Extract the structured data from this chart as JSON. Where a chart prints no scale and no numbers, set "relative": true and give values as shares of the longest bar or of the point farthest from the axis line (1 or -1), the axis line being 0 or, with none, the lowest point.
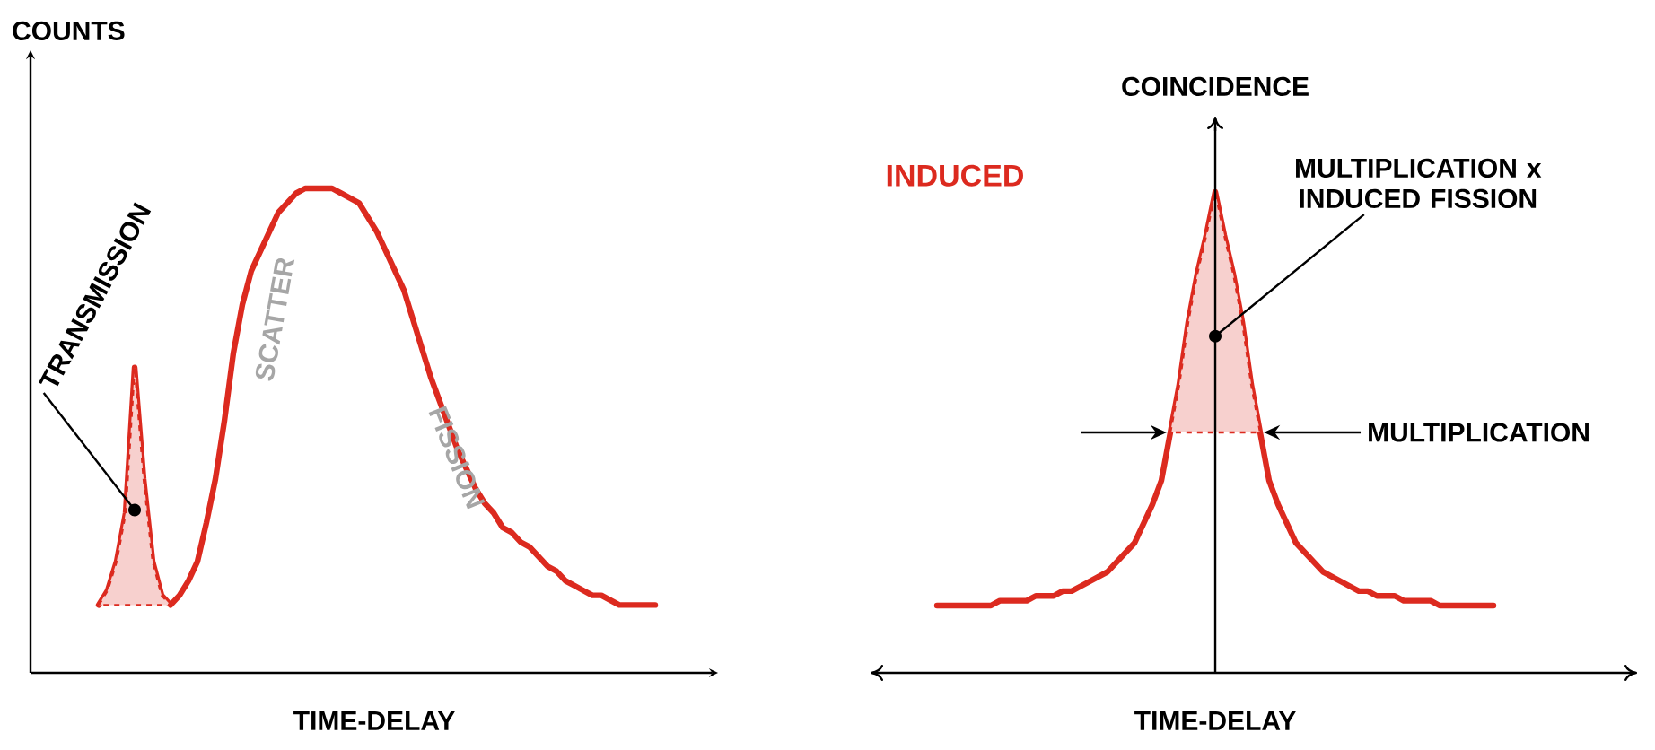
{
  "chart_data": [
    {
      "type": "line",
      "xlabel": "TIME-DELAY",
      "ylabel": "COUNTS",
      "relative": true,
      "categories": [
        null,
        null,
        null,
        null,
        null,
        null,
        null,
        null,
        null,
        null,
        null,
        null,
        null,
        null,
        null,
        null,
        null,
        null,
        null,
        null,
        null,
        null,
        null,
        null,
        null,
        null,
        null,
        null,
        null,
        null,
        null,
        null,
        null,
        null,
        null,
        null,
        null,
        null,
        null,
        null,
        null,
        null,
        null,
        null,
        null,
        null,
        null,
        null,
        null,
        null,
        null,
        null,
        null,
        null,
        null,
        null,
        null,
        null,
        null,
        null,
        null,
        null,
        null
      ],
      "series": [
        {
          "color": "#dc2a1f",
          "values": [
            0.14,
            0.17,
            0.23,
            0.33,
            0.63,
            0.4,
            0.23,
            0.16,
            0.14,
            0.16,
            0.19,
            0.23,
            0.31,
            0.4,
            0.52,
            0.66,
            0.76,
            0.83,
            0.87,
            0.91,
            0.95,
            0.97,
            0.99,
            1.0,
            1.0,
            1.0,
            1.0,
            0.99,
            0.98,
            0.97,
            0.94,
            0.91,
            0.87,
            0.83,
            0.79,
            0.73,
            0.67,
            0.61,
            0.56,
            0.51,
            0.46,
            0.42,
            0.38,
            0.35,
            0.33,
            0.3,
            0.29,
            0.27,
            0.26,
            0.24,
            0.22,
            0.21,
            0.19,
            0.18,
            0.17,
            0.16,
            0.16,
            0.15,
            0.14,
            0.14,
            0.14,
            0.14,
            0.14
          ]
        },
        {
          "type": "area",
          "color": "#dc2a1f",
          "values": [
            0.14,
            0.17,
            0.23,
            0.33,
            0.63,
            0.4,
            0.23,
            0.16,
            0.14,
            null,
            null,
            null,
            null,
            null,
            null,
            null,
            null,
            null,
            null,
            null,
            null,
            null,
            null,
            null,
            null,
            null,
            null,
            null,
            null,
            null,
            null,
            null,
            null,
            null,
            null,
            null,
            null,
            null,
            null,
            null,
            null,
            null,
            null,
            null,
            null,
            null,
            null,
            null,
            null,
            null,
            null,
            null,
            null,
            null,
            null,
            null,
            null,
            null,
            null,
            null,
            null,
            null,
            null
          ]
        }
      ],
      "annotations": [
        "TRANSMISSION",
        "SCATTER",
        "FISSION"
      ]
    },
    {
      "type": "line",
      "xlabel": "TIME-DELAY",
      "ylabel": "COINCIDENCE",
      "relative": true,
      "categories": [
        null,
        null,
        null,
        null,
        null,
        null,
        null,
        null,
        null,
        null,
        null,
        null,
        null,
        null,
        null,
        null,
        null,
        null,
        null,
        null,
        null,
        null,
        null,
        null,
        null,
        null,
        null,
        null,
        null,
        null,
        null,
        null,
        null,
        null,
        null,
        null,
        null,
        null,
        null,
        null,
        null,
        null,
        null,
        null,
        null,
        null,
        null,
        null,
        null,
        null,
        null,
        null,
        null,
        null,
        null,
        null,
        null,
        null,
        null,
        null,
        null,
        null,
        null
      ],
      "series": [
        {
          "name": "INDUCED",
          "color": "#dc2a1f",
          "values": [
            0.14,
            0.14,
            0.14,
            0.14,
            0.14,
            0.14,
            0.14,
            0.15,
            0.15,
            0.15,
            0.15,
            0.16,
            0.16,
            0.16,
            0.17,
            0.17,
            0.18,
            0.19,
            0.2,
            0.21,
            0.23,
            0.25,
            0.27,
            0.31,
            0.35,
            0.4,
            0.5,
            0.6,
            0.73,
            0.83,
            0.91,
            1.0,
            0.91,
            0.83,
            0.73,
            0.6,
            0.5,
            0.4,
            0.35,
            0.31,
            0.27,
            0.25,
            0.23,
            0.21,
            0.2,
            0.19,
            0.18,
            0.17,
            0.17,
            0.16,
            0.16,
            0.16,
            0.15,
            0.15,
            0.15,
            0.15,
            0.14,
            0.14,
            0.14,
            0.14,
            0.14,
            0.14,
            0.14
          ]
        },
        {
          "type": "area",
          "color": "#dc2a1f",
          "values": [
            null,
            null,
            null,
            null,
            null,
            null,
            null,
            null,
            null,
            null,
            null,
            null,
            null,
            null,
            null,
            null,
            null,
            null,
            null,
            null,
            null,
            null,
            null,
            null,
            null,
            null,
            0.5,
            0.6,
            0.73,
            0.83,
            0.91,
            1.0,
            0.91,
            0.83,
            0.73,
            0.6,
            0.5,
            null,
            null,
            null,
            null,
            null,
            null,
            null,
            null,
            null,
            null,
            null,
            null,
            null,
            null,
            null,
            null,
            null,
            null,
            null,
            null,
            null,
            null,
            null,
            null,
            null,
            null
          ]
        }
      ],
      "annotations": [
        "MULTIPLICATION x INDUCED FISSION",
        "MULTIPLICATION"
      ]
    }
  ]
}
